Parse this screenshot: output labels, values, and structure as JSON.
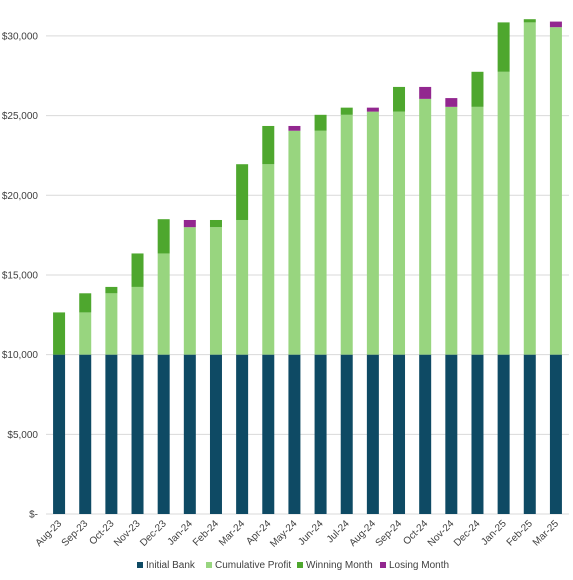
{
  "chart_data": {
    "type": "bar",
    "stacked": true,
    "title": "",
    "xlabel": "",
    "ylabel": "",
    "ylim": [
      0,
      30000
    ],
    "grid": true,
    "legend_position": "bottom",
    "y_ticks": [
      {
        "value": 0,
        "label": "$-"
      },
      {
        "value": 5000,
        "label": "$5,000"
      },
      {
        "value": 10000,
        "label": "$10,000"
      },
      {
        "value": 15000,
        "label": "$15,000"
      },
      {
        "value": 20000,
        "label": "$20,000"
      },
      {
        "value": 25000,
        "label": "$25,000"
      },
      {
        "value": 30000,
        "label": "$30,000"
      }
    ],
    "categories": [
      "Aug-23",
      "Sep-23",
      "Oct-23",
      "Nov-23",
      "Dec-23",
      "Jan-24",
      "Feb-24",
      "Mar-24",
      "Apr-24",
      "May-24",
      "Jun-24",
      "Jul-24",
      "Aug-24",
      "Sep-24",
      "Oct-24",
      "Nov-24",
      "Dec-24",
      "Jan-25",
      "Feb-25",
      "Mar-25"
    ],
    "series": [
      {
        "name": "Initial Bank",
        "color": "#0e4a64",
        "values": [
          10000,
          10000,
          10000,
          10000,
          10000,
          10000,
          10000,
          10000,
          10000,
          10000,
          10000,
          10000,
          10000,
          10000,
          10000,
          10000,
          10000,
          10000,
          10000,
          10000
        ]
      },
      {
        "name": "Cumulative Profit",
        "color": "#98d57f",
        "values": [
          0,
          2650,
          3850,
          4250,
          6350,
          8000,
          8000,
          8450,
          11950,
          14050,
          14050,
          15050,
          15250,
          15250,
          16050,
          15550,
          15550,
          17750,
          20850,
          20550
        ]
      },
      {
        "name": "Winning Month",
        "color": "#4ea72e",
        "values": [
          2650,
          1200,
          400,
          2100,
          2150,
          0,
          450,
          3500,
          2400,
          0,
          1000,
          450,
          0,
          1550,
          0,
          0,
          2200,
          3100,
          200,
          0
        ]
      },
      {
        "name": "Losing Month",
        "color": "#92278f",
        "values": [
          0,
          0,
          0,
          0,
          0,
          450,
          0,
          0,
          0,
          300,
          0,
          0,
          250,
          0,
          750,
          550,
          0,
          0,
          0,
          350
        ]
      }
    ]
  }
}
